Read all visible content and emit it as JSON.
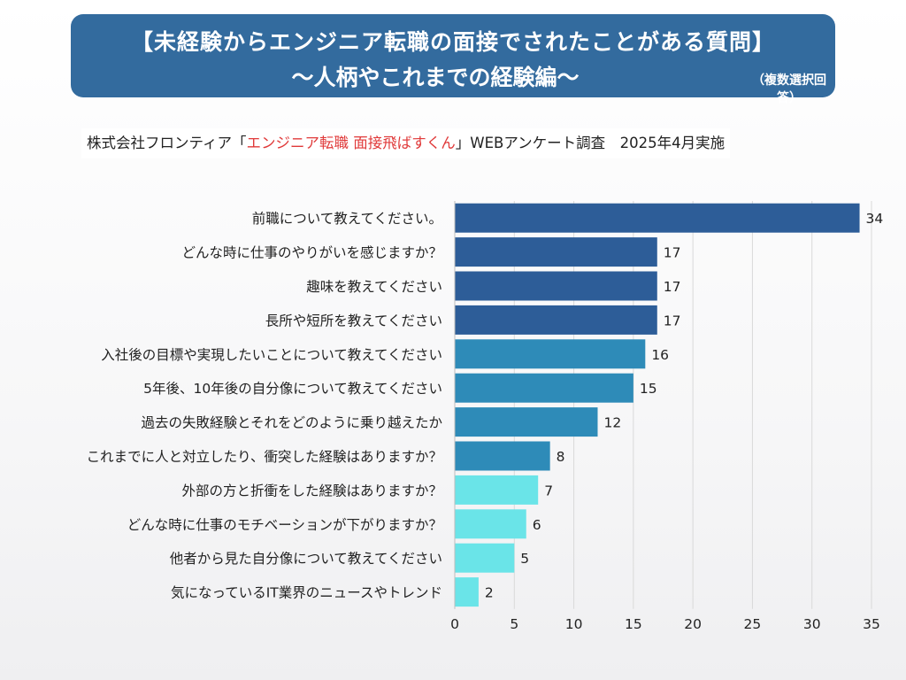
{
  "header": {
    "title_line1": "【未経験からエンジニア転職の面接でされたことがある質問】",
    "title_line2": "〜人柄やこれまでの経験編〜",
    "title_note": "（複数選択回答）"
  },
  "source": {
    "prefix": "株式会社フロンティア「",
    "highlight": "エンジニア転職 面接飛ばすくん",
    "suffix": "」WEBアンケート調査　2025年4月実施"
  },
  "colors": {
    "title_bg": "#336b9e",
    "accent_text": "#e03a3a",
    "bar_dark": "#2d5d98",
    "bar_mid": "#2e8bb8",
    "bar_light": "#6ae4e8",
    "grid": "#d9d9d9"
  },
  "chart_data": {
    "type": "bar",
    "orientation": "horizontal",
    "title": "【未経験からエンジニア転職の面接でされたことがある質問】〜人柄やこれまでの経験編〜",
    "categories": [
      "前職について教えてください。",
      "どんな時に仕事のやりがいを感じますか？",
      "趣味を教えてください",
      "長所や短所を教えてください",
      "入社後の目標や実現したいことについて教えてください",
      "5年後、10年後の自分像について教えてください",
      "過去の失敗経験とそれをどのように乗り越えたか",
      "これまでに人と対立したり、衝突した経験はありますか？",
      "外部の方と折衝をした経験はありますか？",
      "どんな時に仕事のモチベーションが下がりますか？",
      "他者から見た自分像について教えてください",
      "気になっているIT業界のニュースやトレンド"
    ],
    "values": [
      34,
      17,
      17,
      17,
      16,
      15,
      12,
      8,
      7,
      6,
      5,
      2
    ],
    "color_groups": [
      "dark",
      "dark",
      "dark",
      "dark",
      "mid",
      "mid",
      "mid",
      "mid",
      "light",
      "light",
      "light",
      "light"
    ],
    "xlim": [
      0,
      35
    ],
    "xticks": [
      0,
      5,
      10,
      15,
      20,
      25,
      30,
      35
    ],
    "xlabel": "",
    "ylabel": "",
    "grid": true,
    "legend": "none"
  }
}
